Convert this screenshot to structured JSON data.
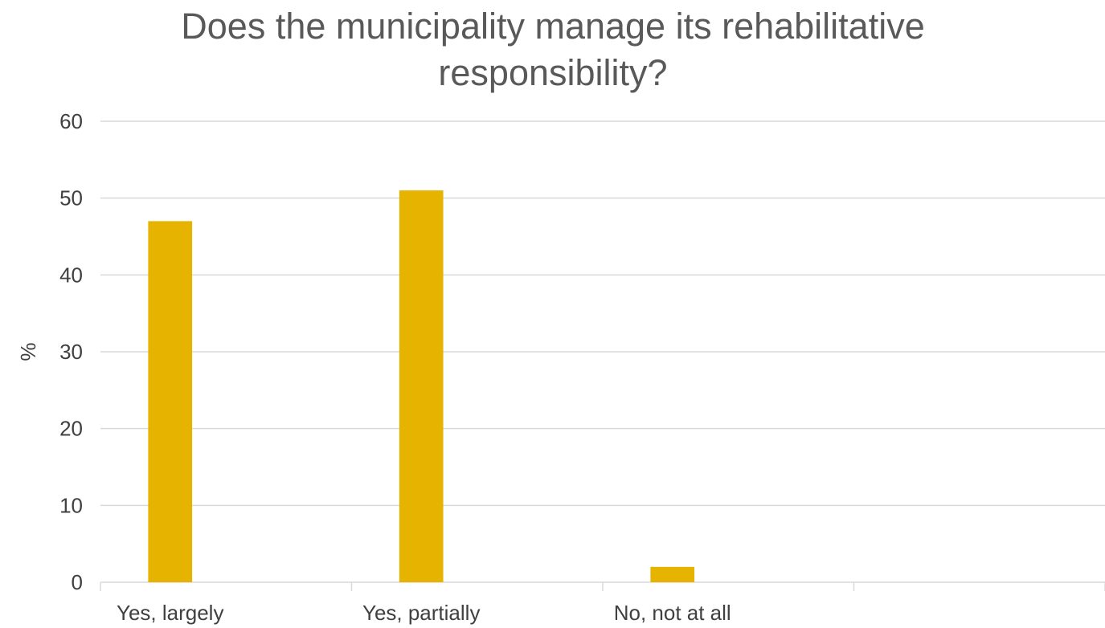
{
  "chart_data": {
    "type": "bar",
    "title_lines": [
      "Does the municipality manage its rehabilitative",
      "responsibility?"
    ],
    "categories": [
      "Yes, largely",
      "Yes, partially",
      "No, not at all",
      ""
    ],
    "series": [
      {
        "values": [
          47,
          51,
          2,
          null
        ],
        "color": "#E6B400"
      }
    ],
    "xlabel": "",
    "ylabel": "%",
    "ylim": [
      0,
      60
    ],
    "yticks": [
      0,
      10,
      20,
      30,
      40,
      50,
      60
    ],
    "grid": true,
    "legend": "none"
  }
}
